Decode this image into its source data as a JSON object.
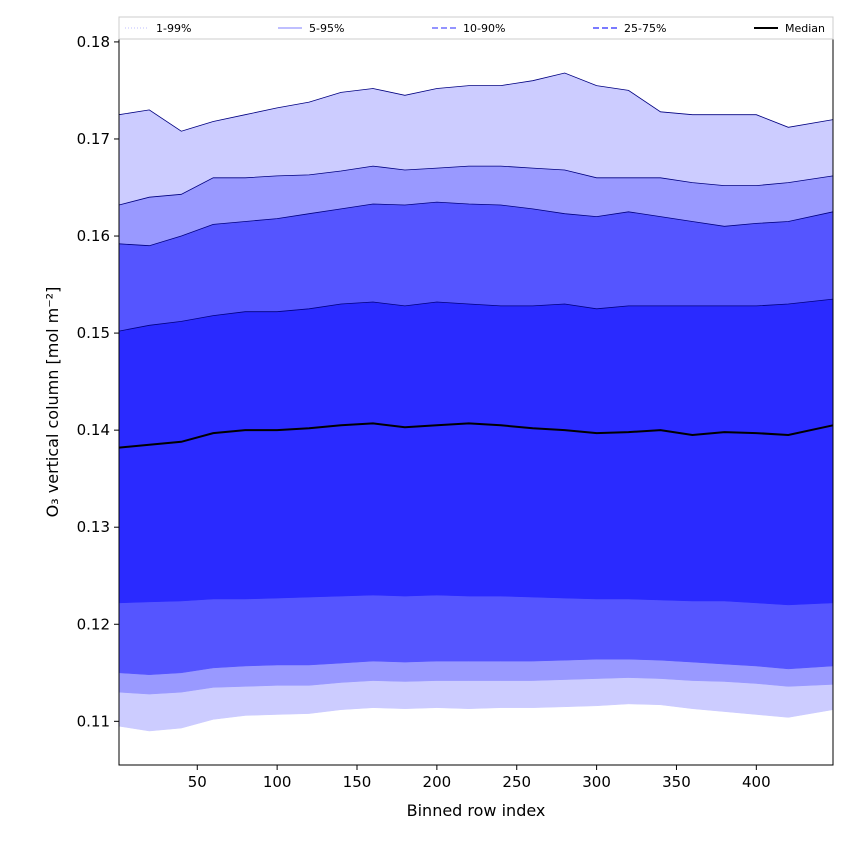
{
  "chart_data": {
    "type": "area",
    "xlabel": "Binned row index",
    "ylabel": "O₃ vertical column [mol m⁻²]",
    "xlim": [
      1,
      448
    ],
    "ylim": [
      0.1055,
      0.1803
    ],
    "x_ticks": [
      50,
      100,
      150,
      200,
      250,
      300,
      350,
      400
    ],
    "y_ticks": [
      0.11,
      0.12,
      0.13,
      0.14,
      0.15,
      0.16,
      0.17,
      0.18
    ],
    "x_tick_labels": [
      "50",
      "100",
      "150",
      "200",
      "250",
      "300",
      "350",
      "400"
    ],
    "y_tick_labels": [
      "0.11",
      "0.12",
      "0.13",
      "0.14",
      "0.15",
      "0.16",
      "0.17",
      "0.18"
    ],
    "grid": false,
    "legend_position": "top",
    "x": [
      1,
      20,
      40,
      60,
      80,
      100,
      120,
      140,
      160,
      180,
      200,
      220,
      240,
      260,
      280,
      300,
      320,
      340,
      360,
      380,
      400,
      420,
      448
    ],
    "series": [
      {
        "name": "1-99%",
        "color": "#ccccff",
        "linestyle": "dotted",
        "lower": [
          0.1095,
          0.109,
          0.1093,
          0.1102,
          0.1106,
          0.1107,
          0.1108,
          0.1112,
          0.1114,
          0.1113,
          0.1114,
          0.1113,
          0.1114,
          0.1114,
          0.1115,
          0.1116,
          0.1118,
          0.1117,
          0.1113,
          0.111,
          0.1107,
          0.1104,
          0.1112
        ],
        "upper": [
          0.1725,
          0.173,
          0.1708,
          0.1718,
          0.1725,
          0.1732,
          0.1738,
          0.1748,
          0.1752,
          0.1745,
          0.1752,
          0.1755,
          0.1755,
          0.176,
          0.1768,
          0.1755,
          0.175,
          0.1728,
          0.1725,
          0.1725,
          0.1725,
          0.1712,
          0.172
        ]
      },
      {
        "name": "5-95%",
        "color": "#9999ff",
        "linestyle": "solid",
        "lower": [
          0.113,
          0.1128,
          0.113,
          0.1135,
          0.1136,
          0.1137,
          0.1137,
          0.114,
          0.1142,
          0.1141,
          0.1142,
          0.1142,
          0.1142,
          0.1142,
          0.1143,
          0.1144,
          0.1145,
          0.1144,
          0.1142,
          0.1141,
          0.1139,
          0.1136,
          0.1138
        ],
        "upper": [
          0.1632,
          0.164,
          0.1643,
          0.166,
          0.166,
          0.1662,
          0.1663,
          0.1667,
          0.1672,
          0.1668,
          0.167,
          0.1672,
          0.1672,
          0.167,
          0.1668,
          0.166,
          0.166,
          0.166,
          0.1655,
          0.1652,
          0.1652,
          0.1655,
          0.1662
        ]
      },
      {
        "name": "10-90%",
        "color": "#5555ff",
        "linestyle": "dashed",
        "lower": [
          0.115,
          0.1148,
          0.115,
          0.1155,
          0.1157,
          0.1158,
          0.1158,
          0.116,
          0.1162,
          0.1161,
          0.1162,
          0.1162,
          0.1162,
          0.1162,
          0.1163,
          0.1164,
          0.1164,
          0.1163,
          0.1161,
          0.1159,
          0.1157,
          0.1154,
          0.1157
        ],
        "upper": [
          0.1592,
          0.159,
          0.16,
          0.1612,
          0.1615,
          0.1618,
          0.1623,
          0.1628,
          0.1633,
          0.1632,
          0.1635,
          0.1633,
          0.1632,
          0.1628,
          0.1623,
          0.162,
          0.1625,
          0.162,
          0.1615,
          0.161,
          0.1613,
          0.1615,
          0.1625
        ]
      },
      {
        "name": "25-75%",
        "color": "#2a2aff",
        "linestyle": "dashed",
        "lower": [
          0.1222,
          0.1223,
          0.1224,
          0.1226,
          0.1226,
          0.1227,
          0.1228,
          0.1229,
          0.123,
          0.1229,
          0.123,
          0.1229,
          0.1229,
          0.1228,
          0.1227,
          0.1226,
          0.1226,
          0.1225,
          0.1224,
          0.1224,
          0.1222,
          0.122,
          0.1222
        ],
        "upper": [
          0.1502,
          0.1508,
          0.1512,
          0.1518,
          0.1522,
          0.1522,
          0.1525,
          0.153,
          0.1532,
          0.1528,
          0.1532,
          0.153,
          0.1528,
          0.1528,
          0.153,
          0.1525,
          0.1528,
          0.1528,
          0.1528,
          0.1528,
          0.1528,
          0.153,
          0.1535
        ]
      },
      {
        "name": "Median",
        "color": "#000000",
        "linestyle": "solid",
        "values": [
          0.1382,
          0.1385,
          0.1388,
          0.1397,
          0.14,
          0.14,
          0.1402,
          0.1405,
          0.1407,
          0.1403,
          0.1405,
          0.1407,
          0.1405,
          0.1402,
          0.14,
          0.1397,
          0.1398,
          0.14,
          0.1395,
          0.1398,
          0.1397,
          0.1395,
          0.1405
        ]
      }
    ]
  }
}
